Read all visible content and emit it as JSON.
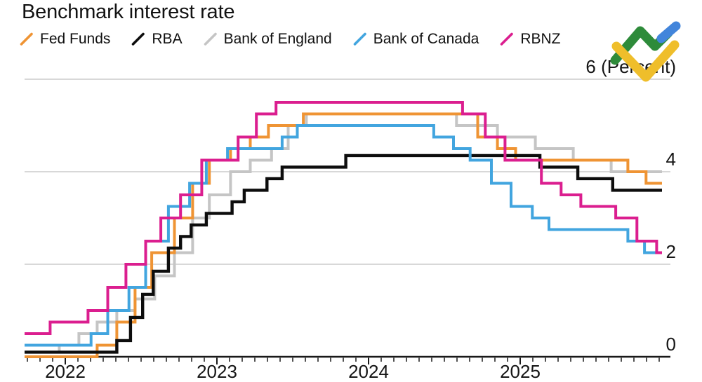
{
  "chart": {
    "title": "Benchmark interest rate"
  },
  "logo": {
    "green": "#2E8B3A",
    "blue": "#4285DB",
    "yellow": "#EFBE2B"
  },
  "chart_data": {
    "type": "step-line",
    "title": "Benchmark interest rate",
    "x_axis": {
      "labels": [
        "2022",
        "2023",
        "2024",
        "2025"
      ],
      "tick_years": [
        2022,
        2023,
        2024,
        2025
      ],
      "range_decimal_years": [
        2021.73,
        2025.94
      ],
      "minor_ticks": "monthly"
    },
    "y_axis": {
      "unit": "Percent",
      "ticks": [
        0,
        2,
        4,
        6
      ],
      "labels": [
        "0",
        "2",
        "4",
        "6 (Percent)"
      ],
      "range": [
        0,
        6
      ],
      "grid": "horizontal"
    },
    "legend_position": "top-left",
    "draw_order": [
      "Bank of England",
      "Fed Funds",
      "RBA",
      "Bank of Canada",
      "RBNZ"
    ],
    "series": [
      {
        "name": "Fed Funds",
        "color": "#EF9434",
        "points": [
          [
            2021.73,
            0
          ],
          [
            2022.21,
            0.25
          ],
          [
            2022.34,
            0.75
          ],
          [
            2022.46,
            1.5
          ],
          [
            2022.57,
            2.25
          ],
          [
            2022.72,
            3.0
          ],
          [
            2022.84,
            3.75
          ],
          [
            2022.95,
            4.25
          ],
          [
            2023.09,
            4.5
          ],
          [
            2023.22,
            4.75
          ],
          [
            2023.34,
            5.0
          ],
          [
            2023.57,
            5.25
          ],
          [
            2024.72,
            4.75
          ],
          [
            2024.85,
            4.5
          ],
          [
            2024.97,
            4.25
          ],
          [
            2025.71,
            4.0
          ],
          [
            2025.83,
            3.75
          ]
        ]
      },
      {
        "name": "RBA",
        "color": "#0D0D0D",
        "points": [
          [
            2021.73,
            0.1
          ],
          [
            2022.34,
            0.35
          ],
          [
            2022.43,
            0.85
          ],
          [
            2022.51,
            1.35
          ],
          [
            2022.58,
            1.85
          ],
          [
            2022.68,
            2.35
          ],
          [
            2022.76,
            2.6
          ],
          [
            2022.83,
            2.85
          ],
          [
            2022.93,
            3.1
          ],
          [
            2023.1,
            3.35
          ],
          [
            2023.18,
            3.6
          ],
          [
            2023.33,
            3.85
          ],
          [
            2023.43,
            4.1
          ],
          [
            2023.85,
            4.35
          ],
          [
            2025.13,
            4.1
          ],
          [
            2025.38,
            3.85
          ],
          [
            2025.61,
            3.6
          ]
        ]
      },
      {
        "name": "Bank of England",
        "color": "#C5C5C5",
        "points": [
          [
            2021.73,
            0.1
          ],
          [
            2021.96,
            0.25
          ],
          [
            2022.09,
            0.5
          ],
          [
            2022.21,
            0.75
          ],
          [
            2022.34,
            1.0
          ],
          [
            2022.46,
            1.25
          ],
          [
            2022.59,
            1.75
          ],
          [
            2022.72,
            2.25
          ],
          [
            2022.84,
            3.0
          ],
          [
            2022.95,
            3.5
          ],
          [
            2023.09,
            4.0
          ],
          [
            2023.22,
            4.25
          ],
          [
            2023.36,
            4.5
          ],
          [
            2023.47,
            5.0
          ],
          [
            2023.59,
            5.25
          ],
          [
            2024.58,
            5.0
          ],
          [
            2024.85,
            4.75
          ],
          [
            2025.1,
            4.5
          ],
          [
            2025.35,
            4.25
          ],
          [
            2025.6,
            4.0
          ]
        ]
      },
      {
        "name": "Bank of Canada",
        "color": "#42A5DF",
        "points": [
          [
            2021.73,
            0.25
          ],
          [
            2022.17,
            0.5
          ],
          [
            2022.28,
            1.0
          ],
          [
            2022.42,
            1.5
          ],
          [
            2022.53,
            2.5
          ],
          [
            2022.68,
            3.25
          ],
          [
            2022.82,
            3.75
          ],
          [
            2022.93,
            4.25
          ],
          [
            2023.07,
            4.5
          ],
          [
            2023.43,
            4.75
          ],
          [
            2023.53,
            5.0
          ],
          [
            2024.43,
            4.75
          ],
          [
            2024.56,
            4.5
          ],
          [
            2024.67,
            4.25
          ],
          [
            2024.81,
            3.75
          ],
          [
            2024.94,
            3.25
          ],
          [
            2025.08,
            3.0
          ],
          [
            2025.19,
            2.75
          ],
          [
            2025.71,
            2.5
          ],
          [
            2025.82,
            2.25
          ]
        ]
      },
      {
        "name": "RBNZ",
        "color": "#DB1E8F",
        "points": [
          [
            2021.73,
            0.5
          ],
          [
            2021.9,
            0.75
          ],
          [
            2022.15,
            1.0
          ],
          [
            2022.28,
            1.5
          ],
          [
            2022.4,
            2.0
          ],
          [
            2022.53,
            2.5
          ],
          [
            2022.63,
            3.0
          ],
          [
            2022.76,
            3.5
          ],
          [
            2022.9,
            4.25
          ],
          [
            2023.14,
            4.75
          ],
          [
            2023.26,
            5.25
          ],
          [
            2023.39,
            5.5
          ],
          [
            2024.62,
            5.25
          ],
          [
            2024.77,
            4.75
          ],
          [
            2024.9,
            4.25
          ],
          [
            2025.14,
            3.75
          ],
          [
            2025.27,
            3.5
          ],
          [
            2025.4,
            3.25
          ],
          [
            2025.63,
            3.0
          ],
          [
            2025.77,
            2.5
          ],
          [
            2025.9,
            2.25
          ]
        ]
      }
    ]
  }
}
